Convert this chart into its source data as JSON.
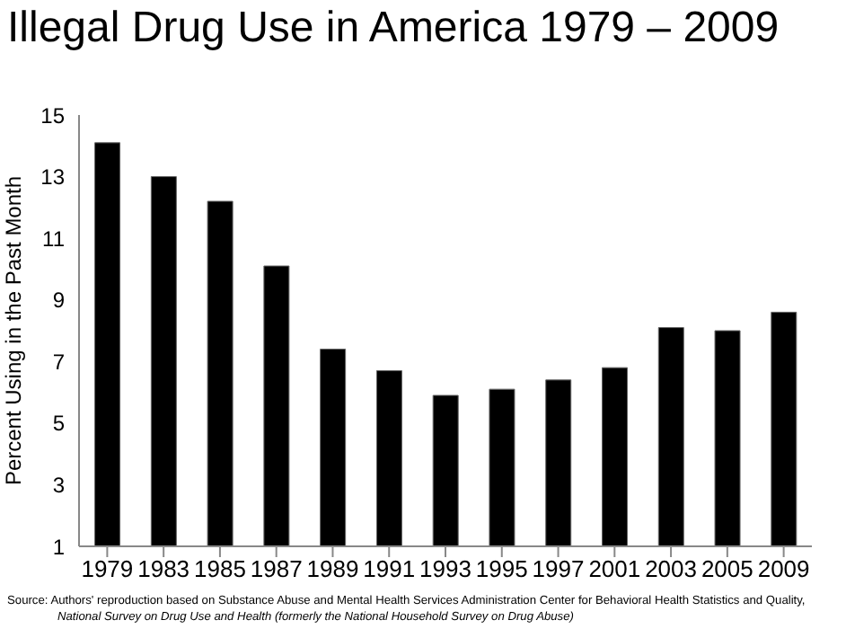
{
  "chart_data": {
    "type": "bar",
    "title": "Illegal Drug Use in America 1979 – 2009",
    "ylabel": "Percent Using in the Past Month",
    "categories": [
      "1979",
      "1983",
      "1985",
      "1987",
      "1989",
      "1991",
      "1993",
      "1995",
      "1997",
      "2001",
      "2003",
      "2005",
      "2009"
    ],
    "values": [
      14.1,
      13.0,
      12.2,
      10.1,
      7.4,
      6.7,
      5.9,
      6.1,
      6.4,
      6.8,
      8.1,
      8.0,
      8.6
    ],
    "color": "#000000",
    "ylim": [
      1,
      15
    ],
    "yticks": [
      1,
      3,
      5,
      7,
      9,
      11,
      13,
      15
    ],
    "grid": false,
    "legend": false,
    "annotations": [
      "Source:  Authors' reproduction based on Substance Abuse and Mental Health Services Administration Center for Behavioral Health Statistics and Quality,",
      "National Survey on Drug Use and Health (formerly the National Household Survey on Drug Abuse)"
    ]
  }
}
